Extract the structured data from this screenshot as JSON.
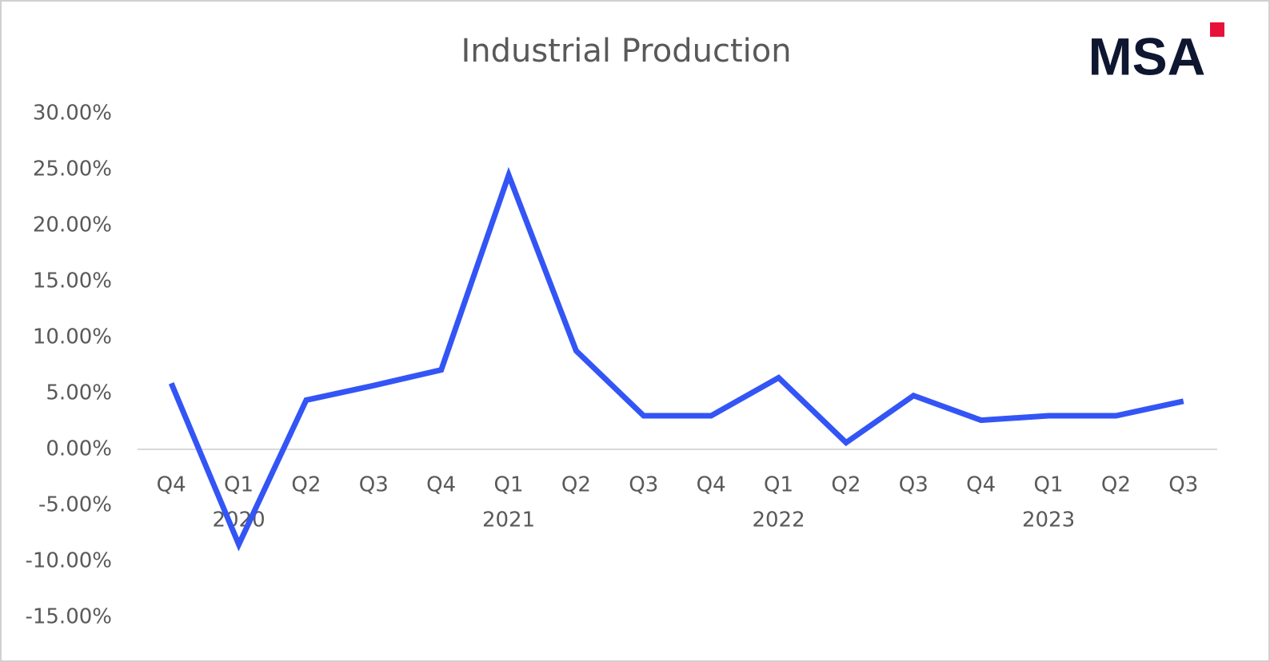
{
  "chart_data": {
    "type": "line",
    "title": "Industrial Production",
    "logo": "MSA",
    "categories": [
      "Q4",
      "Q1",
      "Q2",
      "Q3",
      "Q4",
      "Q1",
      "Q2",
      "Q3",
      "Q4",
      "Q1",
      "Q2",
      "Q3",
      "Q4",
      "Q1",
      "Q2",
      "Q3"
    ],
    "category_groups": [
      null,
      "2020",
      null,
      null,
      null,
      "2021",
      null,
      null,
      null,
      "2022",
      null,
      null,
      null,
      "2023",
      null,
      null
    ],
    "series": [
      {
        "name": "Industrial Production",
        "color": "#3355f5",
        "values": [
          5.9,
          -8.5,
          4.4,
          5.7,
          7.1,
          24.5,
          8.8,
          3.0,
          3.0,
          6.4,
          0.6,
          4.8,
          2.6,
          3.0,
          3.0,
          4.3
        ]
      }
    ],
    "ylim": [
      -15,
      30
    ],
    "yticks": [
      {
        "value": 30,
        "label": "30.00%"
      },
      {
        "value": 25,
        "label": "25.00%"
      },
      {
        "value": 20,
        "label": "20.00%"
      },
      {
        "value": 15,
        "label": "15.00%"
      },
      {
        "value": 10,
        "label": "10.00%"
      },
      {
        "value": 5,
        "label": "5.00%"
      },
      {
        "value": 0,
        "label": "0.00%"
      },
      {
        "value": -5,
        "label": "-5.00%"
      },
      {
        "value": -10,
        "label": "-10.00%"
      },
      {
        "value": -15,
        "label": "-15.00%"
      }
    ],
    "grid": false
  }
}
